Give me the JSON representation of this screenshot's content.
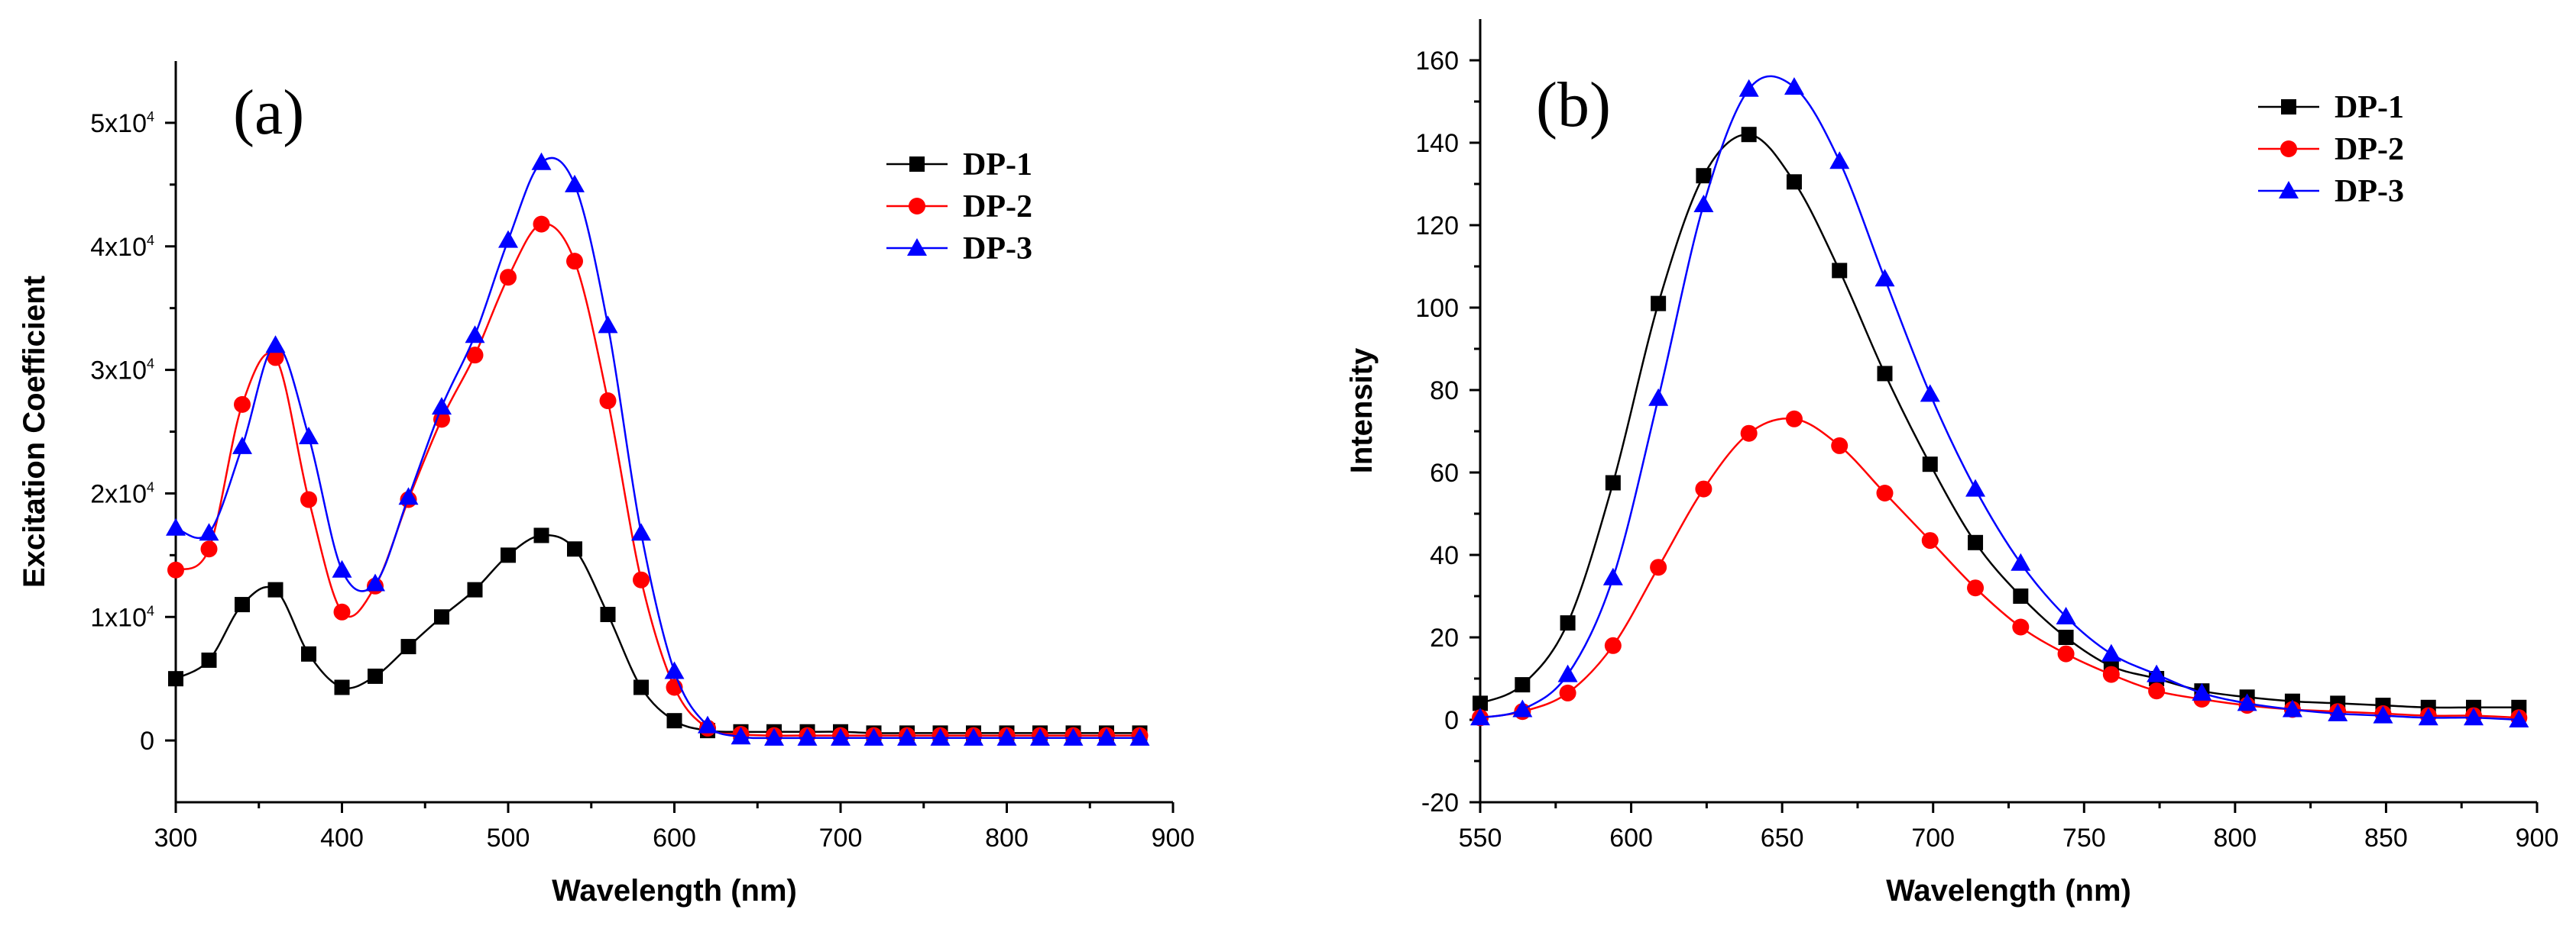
{
  "chart_data": [
    {
      "type": "line",
      "panel_label": "(a)",
      "xlabel": "Wavelength (nm)",
      "ylabel": "Excitation Coefficient",
      "xlim": [
        300,
        900
      ],
      "ylim": [
        -5000,
        55000
      ],
      "x_ticks": [
        300,
        400,
        500,
        600,
        700,
        800,
        900
      ],
      "y_ticks": [
        {
          "value": 0,
          "label": "0"
        },
        {
          "value": 10000,
          "base": "1x10",
          "exp": "4"
        },
        {
          "value": 20000,
          "base": "2x10",
          "exp": "4"
        },
        {
          "value": 30000,
          "base": "3x10",
          "exp": "4"
        },
        {
          "value": 40000,
          "base": "4x10",
          "exp": "4"
        },
        {
          "value": 50000,
          "base": "5x10",
          "exp": "4"
        }
      ],
      "legend_position": "top-right",
      "series": [
        {
          "name": "DP-1",
          "color": "#000000",
          "marker": "square",
          "x": [
            300,
            320,
            340,
            360,
            380,
            400,
            420,
            440,
            460,
            480,
            500,
            520,
            540,
            560,
            580,
            600,
            620,
            640,
            660,
            680,
            700,
            720,
            740,
            760,
            780,
            800,
            820,
            840,
            860,
            880
          ],
          "y": [
            5000,
            6500,
            11000,
            12200,
            7000,
            4300,
            5200,
            7600,
            10000,
            12200,
            15000,
            16600,
            15500,
            10200,
            4300,
            1600,
            800,
            700,
            700,
            700,
            700,
            600,
            600,
            600,
            600,
            600,
            600,
            600,
            600,
            600
          ]
        },
        {
          "name": "DP-2",
          "color": "#ff0000",
          "marker": "circle",
          "x": [
            300,
            320,
            340,
            360,
            380,
            400,
            420,
            440,
            460,
            480,
            500,
            520,
            540,
            560,
            580,
            600,
            620,
            640,
            660,
            680,
            700,
            720,
            740,
            760,
            780,
            800,
            820,
            840,
            860,
            880
          ],
          "y": [
            13800,
            15500,
            27200,
            31000,
            19500,
            10400,
            12500,
            19500,
            26000,
            31200,
            37500,
            41800,
            38800,
            27500,
            13000,
            4300,
            1000,
            500,
            400,
            400,
            400,
            400,
            400,
            400,
            400,
            400,
            400,
            400,
            400,
            400
          ]
        },
        {
          "name": "DP-3",
          "color": "#0000ff",
          "marker": "triangle",
          "x": [
            300,
            320,
            340,
            360,
            380,
            400,
            420,
            440,
            460,
            480,
            500,
            520,
            540,
            560,
            580,
            600,
            620,
            640,
            660,
            680,
            700,
            720,
            740,
            760,
            780,
            800,
            820,
            840,
            860,
            880
          ],
          "y": [
            17200,
            16800,
            23800,
            32000,
            24600,
            13800,
            12700,
            19700,
            27000,
            32800,
            40500,
            46800,
            45000,
            33600,
            16800,
            5600,
            1200,
            300,
            200,
            200,
            200,
            200,
            200,
            200,
            200,
            200,
            200,
            200,
            200,
            200
          ]
        }
      ]
    },
    {
      "type": "line",
      "panel_label": "(b)",
      "xlabel": "Wavelength (nm)",
      "ylabel": "Intensity",
      "xlim": [
        550,
        900
      ],
      "ylim": [
        -20,
        170
      ],
      "x_ticks": [
        550,
        600,
        650,
        700,
        750,
        800,
        850,
        900
      ],
      "y_ticks": [
        {
          "value": -20,
          "label": "-20"
        },
        {
          "value": 0,
          "label": "0"
        },
        {
          "value": 20,
          "label": "20"
        },
        {
          "value": 40,
          "label": "40"
        },
        {
          "value": 60,
          "label": "60"
        },
        {
          "value": 80,
          "label": "80"
        },
        {
          "value": 100,
          "label": "100"
        },
        {
          "value": 120,
          "label": "120"
        },
        {
          "value": 140,
          "label": "140"
        },
        {
          "value": 160,
          "label": "160"
        }
      ],
      "legend_position": "top-right",
      "series": [
        {
          "name": "DP-1",
          "color": "#000000",
          "marker": "square",
          "x": [
            550,
            564,
            579,
            594,
            609,
            624,
            639,
            654,
            669,
            684,
            699,
            714,
            729,
            744,
            759,
            774,
            789,
            804,
            819,
            834,
            849,
            864,
            879,
            894
          ],
          "y": [
            4,
            8.5,
            23.5,
            57.5,
            101,
            132,
            142,
            130.5,
            109,
            84,
            62,
            43,
            30,
            20,
            13,
            10,
            7,
            5.5,
            4.5,
            4,
            3.5,
            3,
            3,
            3
          ]
        },
        {
          "name": "DP-2",
          "color": "#ff0000",
          "marker": "circle",
          "x": [
            550,
            564,
            579,
            594,
            609,
            624,
            639,
            654,
            669,
            684,
            699,
            714,
            729,
            744,
            759,
            774,
            789,
            804,
            819,
            834,
            849,
            864,
            879,
            894
          ],
          "y": [
            0.5,
            2,
            6.5,
            18,
            37,
            56,
            69.5,
            73,
            66.5,
            55,
            43.5,
            32,
            22.5,
            16,
            11,
            7,
            5,
            3.5,
            2.5,
            2,
            1.5,
            1,
            1,
            0.5
          ]
        },
        {
          "name": "DP-3",
          "color": "#0000ff",
          "marker": "triangle",
          "x": [
            550,
            564,
            579,
            594,
            609,
            624,
            639,
            654,
            669,
            684,
            699,
            714,
            729,
            744,
            759,
            774,
            789,
            804,
            819,
            834,
            849,
            864,
            879,
            894
          ],
          "y": [
            0.5,
            2.5,
            11,
            34.5,
            78,
            125,
            153,
            153.5,
            135.5,
            107,
            79,
            56,
            38,
            25,
            16,
            11,
            6.5,
            4,
            2.5,
            1.5,
            1,
            0.5,
            0.5,
            0
          ]
        }
      ]
    }
  ]
}
